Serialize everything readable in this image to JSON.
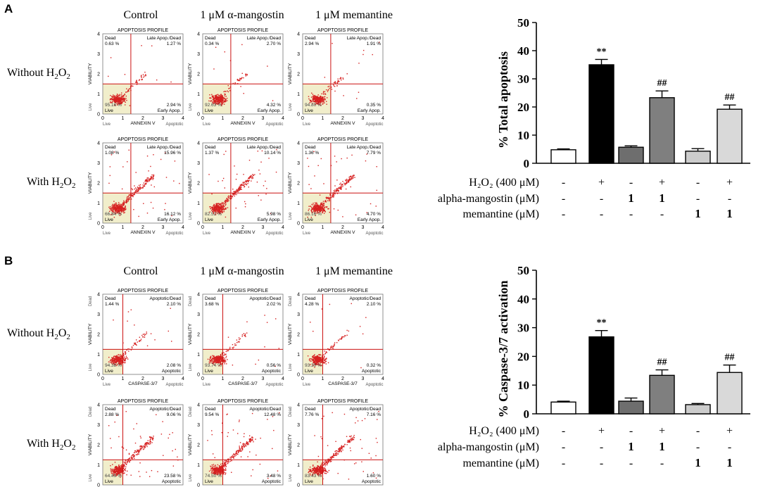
{
  "panels": [
    {
      "letter": "A",
      "col_headers": [
        "Control",
        "1 μM α-mangostin",
        "1 μM memantine"
      ],
      "row_headers": [
        {
          "pre": "Without H",
          "sub": "2",
          "mid": "O",
          "sub2": "2"
        },
        {
          "pre": "With H",
          "sub": "2",
          "mid": "O",
          "sub2": "2"
        }
      ],
      "plot": {
        "title": "APOPTOSIS PROFILE",
        "xlabel": "ANNEXIN V",
        "ylabel": "VIABILITY",
        "xticks": [
          "0",
          "1",
          "2",
          "3",
          "4"
        ],
        "yticks": [
          "0",
          "1",
          "2",
          "3",
          "4"
        ],
        "corner_left": "Live",
        "corner_right": "Apoptotic",
        "ul_label": "Dead",
        "ur_label": "Late Apop./Dead",
        "lr_label": "Early Apop.",
        "ll_label": "Live",
        "split_x": 1.4,
        "split_y": 1.5
      },
      "quadrants": [
        [
          {
            "ul": "0.63 %",
            "ur": "1.27 %",
            "ll": "95.16 %",
            "lr": "2.94 %"
          },
          {
            "ul": "0.34 %",
            "ur": "2.70 %",
            "ll": "92.63 %",
            "lr": "4.32 %"
          },
          {
            "ul": "2.94 %",
            "ur": "1.91 %",
            "ll": "94.80 %",
            "lr": "0.35 %"
          }
        ],
        [
          {
            "ul": "1.08 %",
            "ur": "15.96 %",
            "ll": "66.84 %",
            "lr": "16.12 %"
          },
          {
            "ul": "1.37 %",
            "ur": "10.14 %",
            "ll": "82.52 %",
            "lr": "5.98 %"
          },
          {
            "ul": "1.36 %",
            "ur": "7.79 %",
            "ll": "86.16 %",
            "lr": "4.70 %"
          }
        ]
      ]
    },
    {
      "letter": "B",
      "col_headers": [
        "Control",
        "1 μM α-mangostin",
        "1 μM memantine"
      ],
      "row_headers": [
        {
          "pre": "Without H",
          "sub": "2",
          "mid": "O",
          "sub2": "2"
        },
        {
          "pre": "With H",
          "sub": "2",
          "mid": "O",
          "sub2": "2"
        }
      ],
      "plot": {
        "title": "APOPTOSIS PROFILE",
        "xlabel": "CASPASE-3/7",
        "ylabel": "VIABILITY",
        "xticks": [
          "0",
          "1",
          "2",
          "3",
          "4"
        ],
        "yticks": [
          "0",
          "1",
          "2",
          "3",
          "4"
        ],
        "corner_left": "Live",
        "corner_right": "Apoptotic",
        "corner_top": "Dead",
        "ul_label": "Dead",
        "ur_label": "Apoptotic/Dead",
        "lr_label": "Apoptotic",
        "ll_label": "Live",
        "split_x": 1.0,
        "split_y": 1.25
      },
      "quadrants": [
        [
          {
            "ul": "1.44 %",
            "ur": "2.10 %",
            "ll": "94.38 %",
            "lr": "2.08 %"
          },
          {
            "ul": "3.68 %",
            "ur": "2.02 %",
            "ll": "93.74 %",
            "lr": "0.56 %"
          },
          {
            "ul": "4.28 %",
            "ur": "2.10 %",
            "ll": "93.30 %",
            "lr": "0.32 %"
          }
        ],
        [
          {
            "ul": "2.88 %",
            "ur": "9.06 %",
            "ll": "64.49 %",
            "lr": "23.58 %"
          },
          {
            "ul": "9.54 %",
            "ur": "12.48 %",
            "ll": "74.50 %",
            "lr": "3.48 %"
          },
          {
            "ul": "7.76 %",
            "ur": "7.16 %",
            "ll": "83.43 %",
            "lr": "1.60 %"
          }
        ]
      ]
    }
  ],
  "chart_data": [
    {
      "type": "bar",
      "panel": "A",
      "ylabel": "% Total apoptosis",
      "ylim": [
        0,
        50
      ],
      "yticks": [
        0,
        10,
        20,
        30,
        40,
        50
      ],
      "groups": [
        {
          "bars": [
            {
              "value": 4.8,
              "error": 0.3,
              "color": "#ffffff",
              "label": ""
            },
            {
              "value": 35.0,
              "error": 1.9,
              "color": "#000000",
              "label": "**"
            }
          ]
        },
        {
          "bars": [
            {
              "value": 5.7,
              "error": 0.5,
              "color": "#6e6e6e",
              "label": ""
            },
            {
              "value": 23.3,
              "error": 2.4,
              "color": "#7f7f7f",
              "label": "##"
            }
          ]
        },
        {
          "bars": [
            {
              "value": 4.3,
              "error": 0.9,
              "color": "#cccccc",
              "label": ""
            },
            {
              "value": 19.2,
              "error": 1.5,
              "color": "#d9d9d9",
              "label": "##"
            }
          ]
        }
      ],
      "table": [
        {
          "label": "H₂O₂ (400 μM)",
          "values": [
            "-",
            "+",
            "-",
            "+",
            "-",
            "+"
          ]
        },
        {
          "label": "alpha-mangostin (μM)",
          "values": [
            "-",
            "-",
            "1",
            "1",
            "-",
            "-"
          ]
        },
        {
          "label": "memantine (μM)",
          "values": [
            "-",
            "-",
            "-",
            "-",
            "1",
            "1"
          ]
        }
      ]
    },
    {
      "type": "bar",
      "panel": "B",
      "ylabel": "% Caspase-3/7 activation",
      "ylim": [
        0,
        50
      ],
      "yticks": [
        0,
        10,
        20,
        30,
        40,
        50
      ],
      "groups": [
        {
          "bars": [
            {
              "value": 4.1,
              "error": 0.3,
              "color": "#ffffff",
              "label": ""
            },
            {
              "value": 26.8,
              "error": 2.2,
              "color": "#000000",
              "label": "**"
            }
          ]
        },
        {
          "bars": [
            {
              "value": 4.4,
              "error": 1.1,
              "color": "#6e6e6e",
              "label": ""
            },
            {
              "value": 13.4,
              "error": 1.9,
              "color": "#7f7f7f",
              "label": "##"
            }
          ]
        },
        {
          "bars": [
            {
              "value": 3.2,
              "error": 0.4,
              "color": "#cccccc",
              "label": ""
            },
            {
              "value": 14.4,
              "error": 2.6,
              "color": "#d9d9d9",
              "label": "##"
            }
          ]
        }
      ],
      "table": [
        {
          "label": "H₂O₂ (400 μM)",
          "values": [
            "-",
            "+",
            "-",
            "+",
            "-",
            "+"
          ]
        },
        {
          "label": "alpha-mangostin (μM)",
          "values": [
            "-",
            "-",
            "1",
            "1",
            "-",
            "-"
          ]
        },
        {
          "label": "memantine (μM)",
          "values": [
            "-",
            "-",
            "-",
            "-",
            "1",
            "1"
          ]
        }
      ]
    }
  ]
}
